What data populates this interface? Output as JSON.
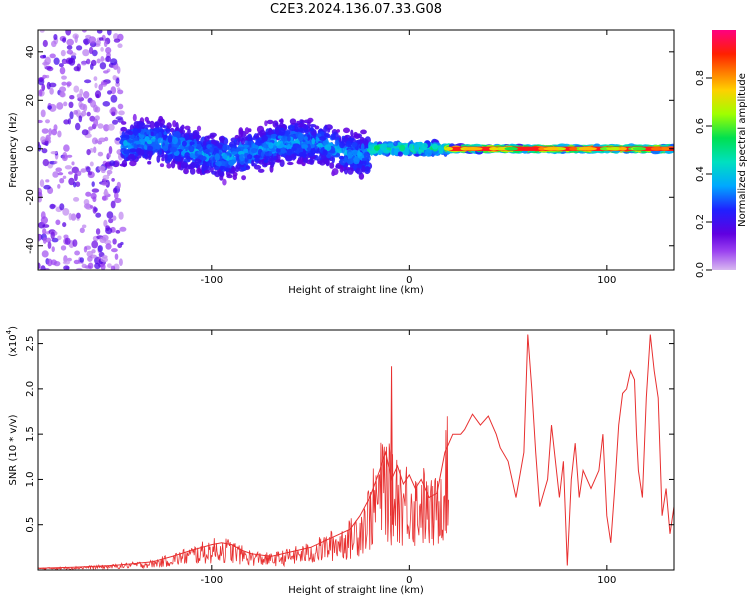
{
  "page_title": "C2E3.2024.136.07.33.G08",
  "chart_data": [
    {
      "type": "heatmap",
      "xlabel": "Height of straight line (km)",
      "ylabel": "Frequency (Hz)",
      "xlim": [
        -188,
        134
      ],
      "ylim": [
        -50,
        49
      ],
      "x_ticks": [
        -100,
        0,
        100
      ],
      "y_ticks": [
        -40,
        -20,
        0,
        20,
        40
      ],
      "colorbar": {
        "label": "Normalized spectral amplitude",
        "range": [
          0,
          1
        ],
        "ticks": [
          0.0,
          0.2,
          0.4,
          0.6,
          0.8
        ],
        "colormap": [
          "#d8b8f0",
          "#8a00e0",
          "#2020ff",
          "#00d8ff",
          "#00e050",
          "#c8ff00",
          "#ff9000",
          "#ff0000",
          "#ff0080"
        ]
      },
      "regions": [
        {
          "x_range": [
            -188,
            -145
          ],
          "freq_spread": 50,
          "amplitude": 0.1
        },
        {
          "x_range": [
            -145,
            -20
          ],
          "freq_spread": 12,
          "amplitude": 0.25
        },
        {
          "x_range": [
            -20,
            20
          ],
          "freq_spread": 3,
          "amplitude": 0.45
        },
        {
          "x_range": [
            20,
            134
          ],
          "freq_spread": 1.5,
          "amplitude": 0.95
        }
      ]
    },
    {
      "type": "line",
      "xlabel": "Height of straight line (km)",
      "ylabel": "SNR (10 * v/v)",
      "scale_label": "(x10",
      "scale_exp": "4",
      "scale_close": ")",
      "xlim": [
        -188,
        134
      ],
      "ylim": [
        0,
        2.65
      ],
      "x_ticks": [
        -100,
        0,
        100
      ],
      "y_ticks": [
        0.5,
        1.0,
        1.5,
        2.0,
        2.5
      ],
      "y_tick_labels": [
        "0.5",
        "1.0",
        "1.5",
        "2.0",
        "2.5"
      ],
      "line_color": "#e83030",
      "series": [
        {
          "x": [
            -188,
            -170,
            -150,
            -140,
            -130,
            -120,
            -110,
            -100,
            -95,
            -90,
            -85,
            -80,
            -70,
            -60,
            -50,
            -40,
            -35,
            -30,
            -25,
            -20,
            -15,
            -12,
            -9,
            -6,
            -3,
            0,
            3,
            6,
            10,
            14,
            18,
            22,
            26,
            28,
            32,
            36,
            40,
            44,
            46,
            50,
            54,
            58,
            60,
            62,
            64,
            66,
            70,
            72,
            76,
            78,
            80,
            82,
            84,
            86,
            88,
            92,
            96,
            98,
            100,
            102,
            104,
            106,
            108,
            110,
            112,
            114,
            115,
            116,
            118,
            120,
            122,
            124,
            126,
            128,
            130,
            132,
            134
          ],
          "y": [
            0.02,
            0.03,
            0.05,
            0.07,
            0.09,
            0.15,
            0.22,
            0.28,
            0.3,
            0.28,
            0.22,
            0.18,
            0.15,
            0.2,
            0.25,
            0.35,
            0.4,
            0.45,
            0.6,
            0.8,
            1.1,
            1.3,
            1.0,
            1.15,
            0.95,
            1.05,
            0.9,
            1.0,
            0.8,
            0.85,
            1.3,
            1.5,
            1.5,
            1.55,
            1.72,
            1.6,
            1.7,
            1.5,
            1.35,
            1.2,
            0.8,
            1.3,
            2.6,
            2.0,
            1.3,
            0.7,
            1.0,
            1.6,
            0.8,
            1.2,
            0.05,
            1.0,
            1.4,
            0.8,
            1.1,
            0.9,
            1.1,
            1.5,
            0.6,
            0.3,
            0.9,
            1.6,
            1.95,
            2.0,
            2.2,
            2.1,
            1.5,
            1.1,
            0.8,
            1.9,
            2.6,
            2.2,
            1.9,
            0.6,
            0.9,
            0.4,
            0.7
          ]
        }
      ]
    }
  ]
}
